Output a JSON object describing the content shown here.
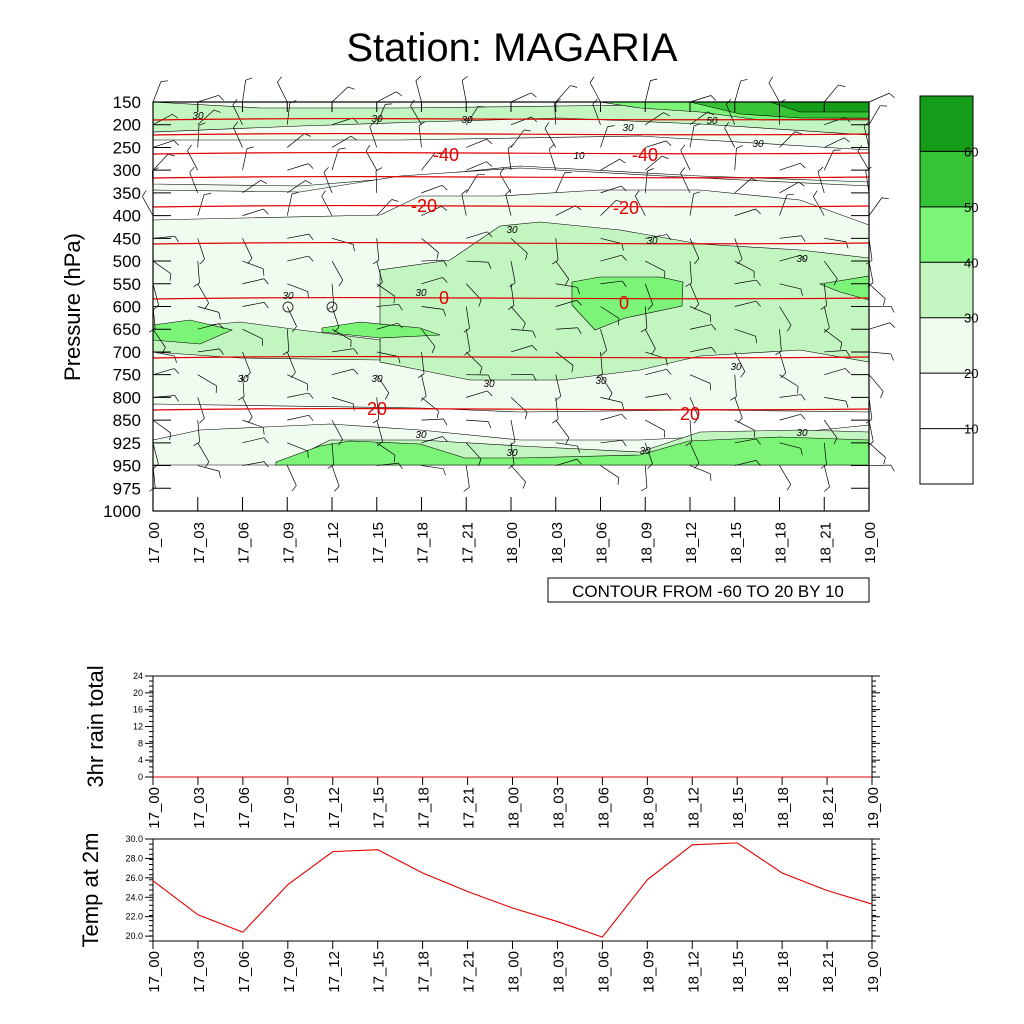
{
  "title": "Station: MAGARIA",
  "colors": {
    "fill_levels": [
      "#ffffff",
      "#f1fcf0",
      "#c3f5c0",
      "#7cf478",
      "#36c436",
      "#159c19"
    ],
    "temp_contour": "#e00000",
    "temp_line": "#e00000"
  },
  "chart_data": [
    {
      "id": "cross_section",
      "type": "heatmap",
      "ylabel": "Pressure (hPa)",
      "y_ticks": [
        150,
        200,
        250,
        300,
        350,
        400,
        450,
        500,
        550,
        600,
        650,
        700,
        750,
        800,
        850,
        925,
        950,
        975,
        1000
      ],
      "x_ticks": [
        "17_00",
        "17_03",
        "17_06",
        "17_09",
        "17_12",
        "17_15",
        "17_18",
        "17_21",
        "18_00",
        "18_03",
        "18_06",
        "18_09",
        "18_12",
        "18_15",
        "18_18",
        "18_21",
        "19_00"
      ],
      "contour_info": "CONTOUR FROM -60 TO 20 BY 10",
      "colorbar": {
        "levels": [
          10,
          20,
          30,
          40,
          50,
          60
        ]
      },
      "temperature_labels": [
        "-40",
        "-40",
        "-20",
        "-20",
        "0",
        "0",
        "20",
        "20"
      ],
      "speed_labels": [
        "30",
        "30",
        "30",
        "30",
        "50",
        "30",
        "10",
        "30",
        "30",
        "30",
        "30",
        "30",
        "30",
        "30",
        "30",
        "30",
        "30",
        "30",
        "30",
        "30",
        "30"
      ]
    },
    {
      "id": "rain",
      "type": "line",
      "ylabel": "3hr rain total",
      "ylim": [
        0,
        24
      ],
      "y_ticks": [
        "0",
        "4",
        "8",
        "12",
        "16",
        "20",
        "24"
      ],
      "x_ticks": [
        "17_00",
        "17_03",
        "17_06",
        "17_09",
        "17_12",
        "17_15",
        "17_18",
        "17_21",
        "18_00",
        "18_03",
        "18_06",
        "18_09",
        "18_12",
        "18_15",
        "18_18",
        "18_21",
        "19_00"
      ],
      "values": [
        0,
        0,
        0,
        0,
        0,
        0,
        0,
        0,
        0,
        0,
        0,
        0,
        0,
        0,
        0,
        0,
        0
      ]
    },
    {
      "id": "temp2m",
      "type": "line",
      "ylabel": "Temp at 2m",
      "ylim": [
        19.5,
        30.0
      ],
      "y_ticks": [
        "20.0",
        "22.0",
        "24.0",
        "26.0",
        "28.0",
        "30.0"
      ],
      "x_ticks": [
        "17_00",
        "17_03",
        "17_06",
        "17_09",
        "17_12",
        "17_15",
        "17_18",
        "17_21",
        "18_00",
        "18_03",
        "18_06",
        "18_09",
        "18_12",
        "18_15",
        "18_18",
        "18_21",
        "19_00"
      ],
      "values": [
        25.7,
        22.2,
        20.4,
        25.3,
        28.7,
        28.9,
        26.5,
        24.6,
        22.9,
        21.5,
        19.9,
        25.8,
        29.4,
        29.6,
        26.5,
        24.7,
        23.3
      ]
    }
  ]
}
